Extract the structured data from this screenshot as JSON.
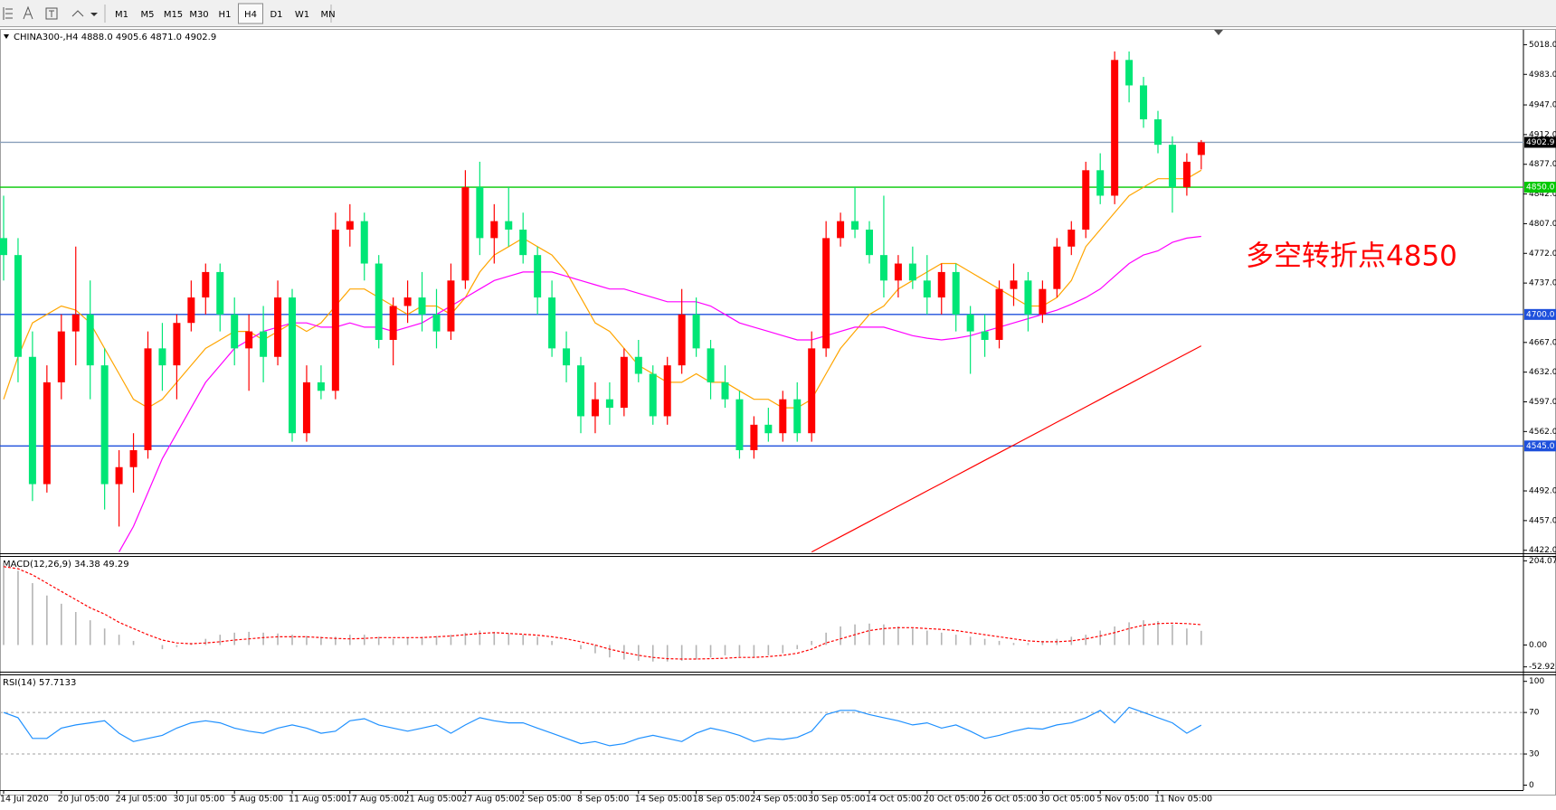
{
  "toolbar": {
    "timeframes": [
      "M1",
      "M5",
      "M15",
      "M30",
      "H1",
      "H4",
      "D1",
      "W1",
      "MN"
    ],
    "active": 5
  },
  "chart_data": [
    {
      "type": "candlestick",
      "title": "CHINA300-,H4  4888.0 4905.6 4871.0 4902.9",
      "categories": [
        "14 Jul 2020",
        null,
        null,
        null,
        "20 Jul 05:00",
        null,
        null,
        null,
        "24 Jul 05:00",
        null,
        null,
        null,
        "30 Jul 05:00",
        null,
        null,
        null,
        "5 Aug 05:00",
        null,
        null,
        null,
        "11 Aug 05:00",
        null,
        null,
        null,
        "17 Aug 05:00",
        null,
        null,
        null,
        "21 Aug 05:00",
        null,
        null,
        null,
        "27 Aug 05:00",
        null,
        null,
        null,
        "2 Sep 05:00",
        null,
        null,
        null,
        "8 Sep 05:00",
        null,
        null,
        null,
        "14 Sep 05:00",
        null,
        null,
        null,
        "18 Sep 05:00",
        null,
        null,
        null,
        "24 Sep 05:00",
        null,
        null,
        null,
        "30 Sep 05:00",
        null,
        null,
        null,
        "14 Oct 05:00",
        null,
        null,
        null,
        "20 Oct 05:00",
        null,
        null,
        null,
        "26 Oct 05:00",
        null,
        null,
        null,
        "30 Oct 05:00",
        null,
        null,
        null,
        "5 Nov 05:00",
        null,
        null,
        null,
        "11 Nov 05:00",
        null,
        null,
        null
      ],
      "ohlc": [
        [
          4790,
          4840,
          4740,
          4770
        ],
        [
          4770,
          4790,
          4620,
          4650
        ],
        [
          4650,
          4680,
          4480,
          4500
        ],
        [
          4500,
          4640,
          4490,
          4620
        ],
        [
          4620,
          4700,
          4600,
          4680
        ],
        [
          4680,
          4780,
          4640,
          4700
        ],
        [
          4700,
          4740,
          4600,
          4640
        ],
        [
          4640,
          4660,
          4470,
          4500
        ],
        [
          4500,
          4540,
          4450,
          4520
        ],
        [
          4520,
          4560,
          4490,
          4540
        ],
        [
          4540,
          4680,
          4530,
          4660
        ],
        [
          4660,
          4690,
          4610,
          4640
        ],
        [
          4640,
          4700,
          4600,
          4690
        ],
        [
          4690,
          4740,
          4680,
          4720
        ],
        [
          4720,
          4760,
          4700,
          4750
        ],
        [
          4750,
          4760,
          4680,
          4700
        ],
        [
          4700,
          4720,
          4640,
          4660
        ],
        [
          4660,
          4700,
          4610,
          4680
        ],
        [
          4680,
          4710,
          4620,
          4650
        ],
        [
          4650,
          4740,
          4640,
          4720
        ],
        [
          4720,
          4730,
          4550,
          4560
        ],
        [
          4560,
          4640,
          4550,
          4620
        ],
        [
          4620,
          4640,
          4600,
          4610
        ],
        [
          4610,
          4820,
          4600,
          4800
        ],
        [
          4800,
          4830,
          4780,
          4810
        ],
        [
          4810,
          4820,
          4740,
          4760
        ],
        [
          4760,
          4770,
          4660,
          4670
        ],
        [
          4670,
          4720,
          4640,
          4710
        ],
        [
          4710,
          4740,
          4690,
          4720
        ],
        [
          4720,
          4750,
          4680,
          4700
        ],
        [
          4700,
          4730,
          4660,
          4680
        ],
        [
          4680,
          4760,
          4670,
          4740
        ],
        [
          4740,
          4870,
          4730,
          4850
        ],
        [
          4850,
          4880,
          4770,
          4790
        ],
        [
          4790,
          4830,
          4760,
          4810
        ],
        [
          4810,
          4850,
          4780,
          4800
        ],
        [
          4800,
          4820,
          4760,
          4770
        ],
        [
          4770,
          4780,
          4700,
          4720
        ],
        [
          4720,
          4740,
          4650,
          4660
        ],
        [
          4660,
          4680,
          4620,
          4640
        ],
        [
          4640,
          4650,
          4560,
          4580
        ],
        [
          4580,
          4620,
          4560,
          4600
        ],
        [
          4600,
          4620,
          4570,
          4590
        ],
        [
          4590,
          4660,
          4580,
          4650
        ],
        [
          4650,
          4670,
          4620,
          4630
        ],
        [
          4630,
          4640,
          4570,
          4580
        ],
        [
          4580,
          4650,
          4570,
          4640
        ],
        [
          4640,
          4730,
          4630,
          4700
        ],
        [
          4700,
          4720,
          4650,
          4660
        ],
        [
          4660,
          4670,
          4600,
          4620
        ],
        [
          4620,
          4640,
          4590,
          4600
        ],
        [
          4600,
          4610,
          4530,
          4540
        ],
        [
          4540,
          4580,
          4530,
          4570
        ],
        [
          4570,
          4590,
          4550,
          4560
        ],
        [
          4560,
          4610,
          4550,
          4600
        ],
        [
          4600,
          4620,
          4550,
          4560
        ],
        [
          4560,
          4680,
          4550,
          4660
        ],
        [
          4660,
          4810,
          4650,
          4790
        ],
        [
          4790,
          4820,
          4780,
          4810
        ],
        [
          4810,
          4850,
          4790,
          4800
        ],
        [
          4800,
          4810,
          4760,
          4770
        ],
        [
          4770,
          4840,
          4720,
          4740
        ],
        [
          4740,
          4770,
          4720,
          4760
        ],
        [
          4760,
          4780,
          4730,
          4740
        ],
        [
          4740,
          4770,
          4700,
          4720
        ],
        [
          4720,
          4760,
          4700,
          4750
        ],
        [
          4750,
          4760,
          4680,
          4700
        ],
        [
          4700,
          4710,
          4630,
          4680
        ],
        [
          4680,
          4700,
          4650,
          4670
        ],
        [
          4670,
          4740,
          4660,
          4730
        ],
        [
          4730,
          4760,
          4710,
          4740
        ],
        [
          4740,
          4750,
          4680,
          4700
        ],
        [
          4700,
          4740,
          4690,
          4730
        ],
        [
          4730,
          4790,
          4720,
          4780
        ],
        [
          4780,
          4810,
          4770,
          4800
        ],
        [
          4800,
          4880,
          4790,
          4870
        ],
        [
          4870,
          4890,
          4830,
          4840
        ],
        [
          4840,
          5010,
          4830,
          5000
        ],
        [
          5000,
          5010,
          4950,
          4970
        ],
        [
          4970,
          4980,
          4920,
          4930
        ],
        [
          4930,
          4940,
          4890,
          4900
        ],
        [
          4900,
          4910,
          4820,
          4850
        ],
        [
          4850,
          4890,
          4840,
          4880
        ],
        [
          4888.0,
          4905.6,
          4871.0,
          4902.9
        ]
      ],
      "up_color": "#ff0000",
      "down_color": "#00e676",
      "ylim": [
        4418.5,
        5035.5
      ],
      "yticks": [
        {
          "value": 5018,
          "label": "5018.0"
        },
        {
          "value": 4983,
          "label": "4983.0"
        },
        {
          "value": 4947,
          "label": "4947.0"
        },
        {
          "value": 4912,
          "label": "4912.0"
        },
        {
          "value": 4877,
          "label": "4877.0"
        },
        {
          "value": 4842,
          "label": "4842.0"
        },
        {
          "value": 4807,
          "label": "4807.0"
        },
        {
          "value": 4772,
          "label": "4772.0"
        },
        {
          "value": 4737,
          "label": "4737.0"
        },
        {
          "value": 4667,
          "label": "4667.0"
        },
        {
          "value": 4632,
          "label": "4632.0"
        },
        {
          "value": 4597,
          "label": "4597.0"
        },
        {
          "value": 4562,
          "label": "4562.0"
        },
        {
          "value": 4492,
          "label": "4492.0"
        },
        {
          "value": 4457,
          "label": "4457.0"
        },
        {
          "value": 4422,
          "label": "4422.0"
        }
      ],
      "lines": [
        {
          "color": "#ffa500",
          "values": [
            4600,
            4650,
            4690,
            4700,
            4710,
            4705,
            4690,
            4660,
            4630,
            4600,
            4590,
            4600,
            4620,
            4640,
            4660,
            4670,
            4680,
            4680,
            4670,
            4680,
            4690,
            4680,
            4690,
            4710,
            4730,
            4730,
            4720,
            4710,
            4700,
            4710,
            4710,
            4700,
            4720,
            4750,
            4770,
            4780,
            4790,
            4780,
            4770,
            4750,
            4720,
            4690,
            4680,
            4660,
            4640,
            4630,
            4620,
            4620,
            4630,
            4620,
            4620,
            4610,
            4600,
            4600,
            4590,
            4590,
            4600,
            4630,
            4660,
            4680,
            4700,
            4710,
            4730,
            4740,
            4750,
            4760,
            4760,
            4750,
            4740,
            4730,
            4720,
            4710,
            4710,
            4720,
            4740,
            4780,
            4800,
            4820,
            4840,
            4850,
            4860,
            4860,
            4860,
            4870
          ]
        },
        {
          "color": "#ff00ff",
          "values": [
            null,
            null,
            null,
            null,
            null,
            null,
            null,
            null,
            4420,
            4450,
            4490,
            4530,
            4560,
            4590,
            4620,
            4640,
            4660,
            4670,
            4680,
            4685,
            4690,
            4690,
            4685,
            4685,
            4690,
            4685,
            4685,
            4680,
            4685,
            4690,
            4700,
            4710,
            4720,
            4730,
            4740,
            4745,
            4750,
            4750,
            4750,
            4745,
            4740,
            4735,
            4730,
            4730,
            4725,
            4720,
            4715,
            4715,
            4715,
            4710,
            4700,
            4690,
            4685,
            4680,
            4675,
            4670,
            4670,
            4675,
            4680,
            4685,
            4685,
            4685,
            4680,
            4675,
            4672,
            4670,
            4672,
            4675,
            4680,
            4685,
            4690,
            4695,
            4700,
            4705,
            4712,
            4720,
            4730,
            4745,
            4760,
            4770,
            4775,
            4785,
            4790,
            4792
          ]
        },
        {
          "color": "#ff0000",
          "values": [
            null,
            null,
            null,
            null,
            null,
            null,
            null,
            null,
            null,
            null,
            null,
            null,
            null,
            null,
            null,
            null,
            null,
            null,
            null,
            null,
            null,
            null,
            null,
            null,
            null,
            null,
            null,
            null,
            null,
            null,
            null,
            null,
            null,
            null,
            null,
            null,
            null,
            null,
            null,
            null,
            null,
            null,
            null,
            null,
            null,
            null,
            null,
            null,
            null,
            null,
            null,
            null,
            null,
            null,
            null,
            null,
            4420,
            4429,
            4438,
            4447,
            4456,
            4465,
            4474,
            4483,
            4492,
            4501,
            4510,
            4519,
            4528,
            4537,
            4546,
            4555,
            4564,
            4573,
            4582,
            4591,
            4600,
            4609,
            4618,
            4627,
            4636,
            4645,
            4654,
            4663
          ]
        }
      ],
      "hlines": [
        {
          "value": 4902.9,
          "label": "4902.9",
          "color": "#8aa0bb",
          "box": "#000000"
        },
        {
          "value": 4850,
          "label": "4850.0",
          "color": "#00c800",
          "box": "#00c800"
        },
        {
          "value": 4700,
          "label": "4700.0",
          "color": "#1e50dc",
          "box": "#1e50dc"
        },
        {
          "value": 4545,
          "label": "4545.0",
          "color": "#1e50dc",
          "box": "#1e50dc"
        }
      ],
      "annotation": {
        "text": "多空转折点4850",
        "color": "#ff0000"
      }
    },
    {
      "type": "macd",
      "title": "MACD(12,26,9) 34.38 49.29",
      "ylim": [
        -64.6,
        215.8
      ],
      "yticks": [
        204.07,
        {
          "value": 0,
          "label": "0.00"
        },
        -52.92
      ],
      "histogram": [
        200,
        180,
        150,
        120,
        100,
        80,
        60,
        40,
        25,
        10,
        0,
        -10,
        -5,
        5,
        15,
        25,
        30,
        32,
        30,
        28,
        25,
        22,
        20,
        20,
        25,
        25,
        20,
        15,
        18,
        20,
        22,
        25,
        30,
        35,
        32,
        28,
        25,
        20,
        10,
        0,
        -10,
        -20,
        -30,
        -35,
        -38,
        -40,
        -40,
        -38,
        -35,
        -30,
        -25,
        -28,
        -30,
        -25,
        -20,
        -10,
        10,
        30,
        45,
        50,
        52,
        50,
        45,
        40,
        35,
        30,
        25,
        20,
        15,
        10,
        5,
        5,
        10,
        15,
        20,
        25,
        35,
        45,
        55,
        60,
        58,
        50,
        40,
        34.38
      ],
      "signal": [
        190,
        185,
        170,
        150,
        130,
        110,
        90,
        75,
        55,
        40,
        25,
        12,
        5,
        3,
        5,
        8,
        12,
        15,
        18,
        20,
        20,
        20,
        18,
        16,
        15,
        16,
        18,
        18,
        18,
        18,
        20,
        22,
        25,
        28,
        30,
        28,
        26,
        24,
        20,
        15,
        8,
        0,
        -10,
        -18,
        -25,
        -30,
        -33,
        -34,
        -34,
        -33,
        -32,
        -30,
        -30,
        -28,
        -25,
        -20,
        -10,
        5,
        15,
        25,
        35,
        40,
        42,
        42,
        40,
        38,
        35,
        30,
        25,
        20,
        15,
        10,
        8,
        8,
        10,
        15,
        22,
        30,
        40,
        48,
        52,
        53,
        52,
        49.29
      ],
      "histogram_color": "#b4b4b4",
      "signal_color": "#ff0000"
    },
    {
      "type": "rsi",
      "title": "RSI(14) 57.7133",
      "ylim": [
        -4.8,
        106.7
      ],
      "yticks": [
        100,
        70,
        30,
        0
      ],
      "levels": [
        70,
        30
      ],
      "values": [
        70,
        65,
        45,
        45,
        55,
        58,
        60,
        62,
        50,
        42,
        45,
        48,
        55,
        60,
        62,
        60,
        55,
        52,
        50,
        55,
        58,
        55,
        50,
        52,
        62,
        64,
        58,
        55,
        52,
        55,
        58,
        50,
        58,
        65,
        62,
        60,
        60,
        55,
        50,
        45,
        40,
        42,
        38,
        40,
        45,
        48,
        45,
        42,
        50,
        55,
        52,
        48,
        42,
        45,
        44,
        46,
        52,
        68,
        72,
        72,
        68,
        65,
        62,
        58,
        60,
        55,
        58,
        52,
        45,
        48,
        52,
        55,
        54,
        58,
        60,
        65,
        72,
        60,
        75,
        70,
        65,
        60,
        50,
        57.7133
      ],
      "color": "#1e90ff"
    }
  ]
}
